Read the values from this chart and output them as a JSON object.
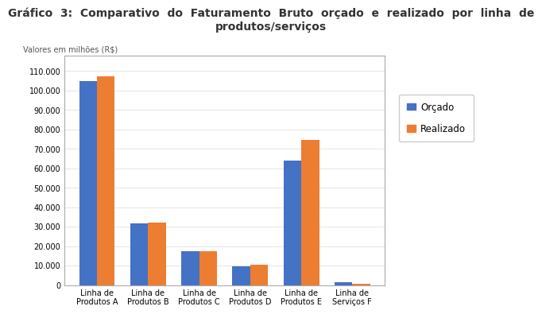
{
  "categories": [
    "Linha de\nProdutos A",
    "Linha de\nProdutos B",
    "Linha de\nProdutos C",
    "Linha de\nProdutos D",
    "Linha de\nProdutos E",
    "Linha de\nServiços F"
  ],
  "orcado": [
    105000,
    31500,
    17500,
    9500,
    64000,
    1500
  ],
  "realizado": [
    107500,
    32000,
    17500,
    10500,
    74500,
    700
  ],
  "bar_color_orcado": "#4472C4",
  "bar_color_realizado": "#ED7D31",
  "ylabel": "Valores em milhões (R$)",
  "ylim": [
    0,
    118000
  ],
  "yticks": [
    0,
    10000,
    20000,
    30000,
    40000,
    50000,
    60000,
    70000,
    80000,
    90000,
    100000,
    110000
  ],
  "ytick_labels": [
    "0",
    "10.000",
    "20.000",
    "30.000",
    "40.000",
    "50.000",
    "60.000",
    "70.000",
    "80.000",
    "90.000",
    "100.000",
    "110.000"
  ],
  "legend_orcado": "Orçado",
  "legend_realizado": "Realizado",
  "title_line1": "Gráfico  3:  Comparativo  do  Faturamento  Bruto  orçado  e  realizado  por  linha  de",
  "title_line2": "produtos/serviços",
  "title_fontsize": 10,
  "bar_width": 0.35,
  "background_color": "#ffffff",
  "chart_bg": "#ffffff",
  "border_color": "#aaaaaa",
  "grid_color": "#d9d9d9",
  "tick_label_fontsize": 7,
  "ylabel_fontsize": 7,
  "legend_fontsize": 8.5
}
